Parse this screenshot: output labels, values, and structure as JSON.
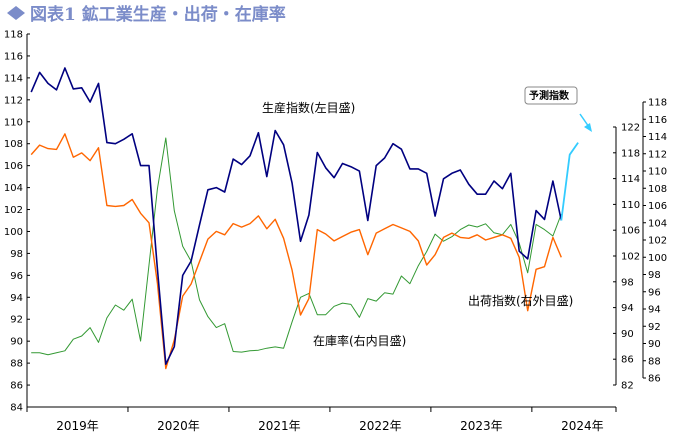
{
  "title": "図表1 鉱工業生産・出荷・在庫率",
  "colors": {
    "production": "#000080",
    "shipments": "#ff6600",
    "inventory": "#339933",
    "forecast": "#33ccff",
    "title": "#7b8cc9"
  },
  "chart_data": {
    "type": "line",
    "grid": false,
    "x_ticks": [
      "2019年",
      "2020年",
      "2021年",
      "2022年",
      "2023年",
      "2024年"
    ],
    "left_axis": {
      "range": [
        84,
        118
      ],
      "step": 2
    },
    "right_axis_inner": {
      "range": [
        82,
        122
      ],
      "step": 4
    },
    "right_axis_outer": {
      "range": [
        86,
        118
      ],
      "step": 2
    },
    "annotations": {
      "production": "生産指数(左目盛)",
      "shipments": "出荷指数(右外目盛)",
      "inventory": "在庫率(右内目盛)",
      "forecast": "予測指数"
    },
    "series": [
      {
        "key": "production",
        "axis": "left",
        "start": "2019-01",
        "values": [
          112.7,
          114.5,
          113.5,
          112.9,
          114.9,
          113.0,
          113.1,
          111.8,
          113.5,
          108.1,
          108.0,
          108.4,
          108.9,
          106.0,
          106.0,
          96.6,
          87.9,
          89.5,
          96.0,
          97.3,
          100.6,
          103.8,
          104.0,
          103.6,
          106.6,
          106.1,
          106.9,
          109.0,
          105.0,
          109.2,
          107.9,
          104.4,
          99.1,
          101.5,
          107.2,
          105.8,
          104.9,
          106.2,
          105.9,
          105.5,
          101.0,
          106.0,
          106.7,
          108.0,
          107.5,
          105.7,
          105.7,
          105.3,
          101.4,
          104.8,
          105.3,
          105.6,
          104.3,
          103.4,
          103.4,
          104.6,
          103.9,
          105.3,
          98.2,
          97.5,
          101.9,
          101.1,
          104.6,
          101.0
        ]
      },
      {
        "key": "forecast",
        "axis": "left",
        "start": "2024-04",
        "values": [
          101.0,
          107.0,
          108.1
        ]
      },
      {
        "key": "shipments",
        "axis": "right_outer",
        "start": "2019-01",
        "values": [
          111.9,
          113.0,
          112.6,
          112.5,
          114.3,
          111.6,
          112.1,
          111.2,
          112.7,
          106.0,
          105.9,
          106.0,
          106.7,
          105.1,
          104.0,
          97.0,
          87.1,
          90.4,
          95.5,
          96.9,
          99.5,
          102.1,
          103.0,
          102.6,
          103.9,
          103.5,
          103.9,
          104.8,
          103.3,
          104.4,
          102.2,
          98.5,
          93.3,
          95.2,
          103.2,
          102.7,
          101.9,
          102.4,
          102.9,
          103.2,
          100.3,
          102.8,
          103.3,
          103.8,
          103.4,
          103.0,
          101.9,
          99.1,
          100.3,
          102.3,
          102.8,
          102.3,
          102.2,
          102.6,
          102.0,
          102.3,
          102.6,
          102.2,
          100.0,
          93.8,
          98.6,
          98.9,
          102.3,
          100.0
        ]
      },
      {
        "key": "inventory",
        "axis": "right_inner",
        "start": "2019-01",
        "values": [
          87.0,
          87.0,
          86.7,
          87.0,
          87.3,
          89.1,
          89.6,
          90.9,
          88.6,
          92.4,
          94.4,
          93.6,
          95.3,
          88.8,
          100.6,
          112.4,
          120.3,
          109.0,
          103.5,
          101.2,
          95.2,
          92.6,
          90.9,
          91.5,
          87.2,
          87.1,
          87.3,
          87.4,
          87.7,
          87.9,
          87.7,
          91.8,
          95.6,
          96.2,
          92.9,
          92.9,
          94.2,
          94.7,
          94.5,
          92.5,
          95.4,
          95.0,
          96.3,
          96.1,
          98.9,
          97.7,
          100.5,
          102.7,
          105.4,
          104.3,
          105.0,
          106.1,
          106.8,
          106.5,
          107.0,
          105.6,
          105.3,
          106.9,
          104.0,
          99.4,
          106.9,
          106.1,
          105.1,
          108.5
        ]
      }
    ]
  }
}
